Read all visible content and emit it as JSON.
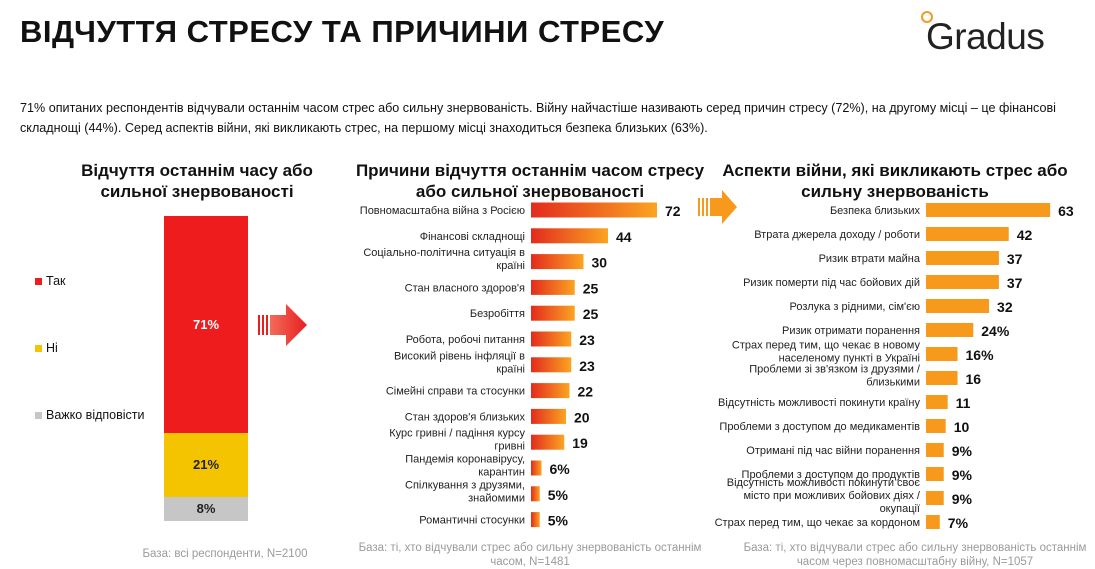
{
  "page": {
    "title": "ВІДЧУТТЯ СТРЕСУ ТА ПРИЧИНИ СТРЕСУ",
    "logo": "Gradus",
    "intro": "71% опитаних респондентів відчували останнім часом стрес або сильну знервованість. Війну найчастіше називають серед причин стресу (72%), на другому місці – це фінансові складнощі (44%). Серед аспектів війни, які викликають стрес, на першому місці знаходиться безпека близьких (63%)."
  },
  "colors": {
    "yes": "#ee1c1c",
    "no": "#f5c400",
    "hard": "#c6c6c6",
    "bar_light": "#fba421",
    "bar_dark": "#e32b1e",
    "orange": "#f79a1b"
  },
  "chart_data": [
    {
      "type": "bar",
      "stacked": true,
      "title": "Відчуття останнім часу або сильної знервованості",
      "categories": [
        "Так",
        "Ні",
        "Важко відповісти"
      ],
      "values": [
        71,
        21,
        8
      ],
      "value_labels": [
        "71%",
        "21%",
        "8%"
      ],
      "base": "База: всі респонденти, N=2100"
    },
    {
      "type": "bar",
      "orientation": "horizontal",
      "title": "Причини відчуття останнім часом стресу або сильної знервованості",
      "categories": [
        "Повномасштабна війна з Росією",
        "Фінансові складнощі",
        "Соціально-політична ситуація в країні",
        "Стан власного здоров'я",
        "Безробіття",
        "Робота, робочі питання",
        "Високий рівень інфляції в країні",
        "Сімейні справи та стосунки",
        "Стан здоров'я близьких",
        "Курс гривні / падіння курсу гривні",
        "Пандемія коронавірусу, карантин",
        "Спілкування з друзями, знайомими",
        "Романтичні стосунки"
      ],
      "values": [
        72,
        44,
        30,
        25,
        25,
        23,
        23,
        22,
        20,
        19,
        6,
        5,
        5
      ],
      "value_labels": [
        "72",
        "44",
        "30",
        "25",
        "25",
        "23",
        "23",
        "22",
        "20",
        "19",
        "6%",
        "5%",
        "5%"
      ],
      "base": "База: ті, хто відчували стрес або сильну знервованість останнім часом, N=1481"
    },
    {
      "type": "bar",
      "orientation": "horizontal",
      "title": "Аспекти війни, які викликають стрес або сильну знервованість",
      "categories": [
        "Безпека близьких",
        "Втрата джерела доходу / роботи",
        "Ризик втрати майна",
        "Ризик померти під час бойових дій",
        "Розлука з рідними, сім'єю",
        "Ризик отримати поранення",
        "Страх перед тим, що чекає в новому населеному пункті в Україні",
        "Проблеми зі зв'язком із друзями / близькими",
        "Відсутність можливості покинути країну",
        "Проблеми з доступом до медикаментів",
        "Отримані під час війни поранення",
        "Проблеми з доступом до продуктів",
        "Відсутність можливості покинути своє місто при можливих бойових діях / окупації",
        "Страх перед тим, що чекає за кордоном"
      ],
      "values": [
        63,
        42,
        37,
        37,
        32,
        24,
        16,
        16,
        11,
        10,
        9,
        9,
        9,
        7
      ],
      "value_labels": [
        "63",
        "42",
        "37",
        "37",
        "32",
        "24%",
        "16%",
        "16",
        "11",
        "10",
        "9%",
        "9%",
        "9%",
        "7%"
      ],
      "base": "База: ті, хто відчували стрес або сильну знервованість останнім часом через повномасштабну війну, N=1057"
    }
  ]
}
